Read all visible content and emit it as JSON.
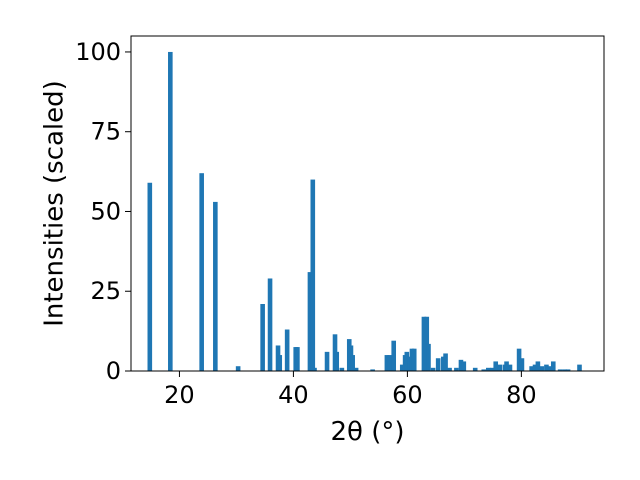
{
  "chart_data": {
    "type": "bar",
    "xlabel": "2θ (°)",
    "ylabel": "Intensities (scaled)",
    "xlim": [
      11.5,
      94.5
    ],
    "ylim": [
      0,
      105
    ],
    "xticks": [
      20,
      40,
      60,
      80
    ],
    "yticks": [
      0,
      25,
      50,
      75,
      100
    ],
    "grid": false,
    "bar_color": "#1f77b4",
    "x": [
      14.8,
      18.4,
      23.9,
      26.3,
      30.3,
      34.6,
      35.9,
      37.3,
      37.6,
      38.9,
      40.4,
      40.7,
      42.9,
      43.4,
      43.7,
      45.9,
      47.3,
      47.6,
      48.5,
      49.8,
      50.1,
      50.4,
      51.0,
      53.9,
      56.4,
      56.9,
      57.6,
      59.1,
      59.6,
      59.9,
      60.4,
      60.8,
      61.2,
      62.9,
      63.4,
      63.7,
      64.5,
      65.4,
      66.3,
      66.7,
      67.4,
      68.6,
      69.4,
      69.9,
      71.9,
      73.4,
      74.2,
      74.9,
      75.5,
      76.2,
      77.1,
      77.4,
      78.0,
      79.6,
      80.1,
      81.8,
      82.4,
      82.9,
      83.6,
      84.4,
      85.0,
      85.6,
      86.8,
      87.6,
      88.2,
      90.2
    ],
    "values": [
      59,
      100,
      62,
      53,
      1.5,
      21,
      29,
      8,
      5,
      13,
      7.5,
      7.5,
      31,
      60,
      1,
      6,
      11.5,
      6,
      1,
      10,
      8,
      5,
      1,
      0.5,
      5,
      5,
      9.5,
      2,
      5,
      6,
      4.5,
      7,
      7,
      17,
      17,
      8.5,
      1,
      4,
      4.5,
      5.5,
      1,
      1,
      3.5,
      3,
      1,
      0.5,
      1,
      1,
      3,
      2,
      2,
      3,
      2,
      7,
      4,
      1.5,
      2,
      3,
      1.5,
      2,
      1.5,
      3,
      0.5,
      0.5,
      0.5,
      2
    ]
  }
}
